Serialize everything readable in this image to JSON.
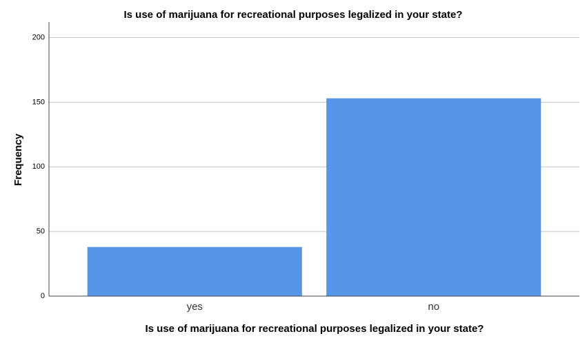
{
  "chart_data": {
    "type": "bar",
    "title": "Is use of marijuana for recreational purposes legalized in your state?",
    "x_label": "Is use of marijuana for recreational purposes legalized in your state?",
    "y_label": "Frequency",
    "categories": [
      "yes",
      "no"
    ],
    "values": [
      38,
      153
    ],
    "color": "#5596e6",
    "ylim": [
      0,
      212
    ],
    "yticks": [
      0,
      50,
      100,
      150,
      200
    ],
    "grid": true
  }
}
